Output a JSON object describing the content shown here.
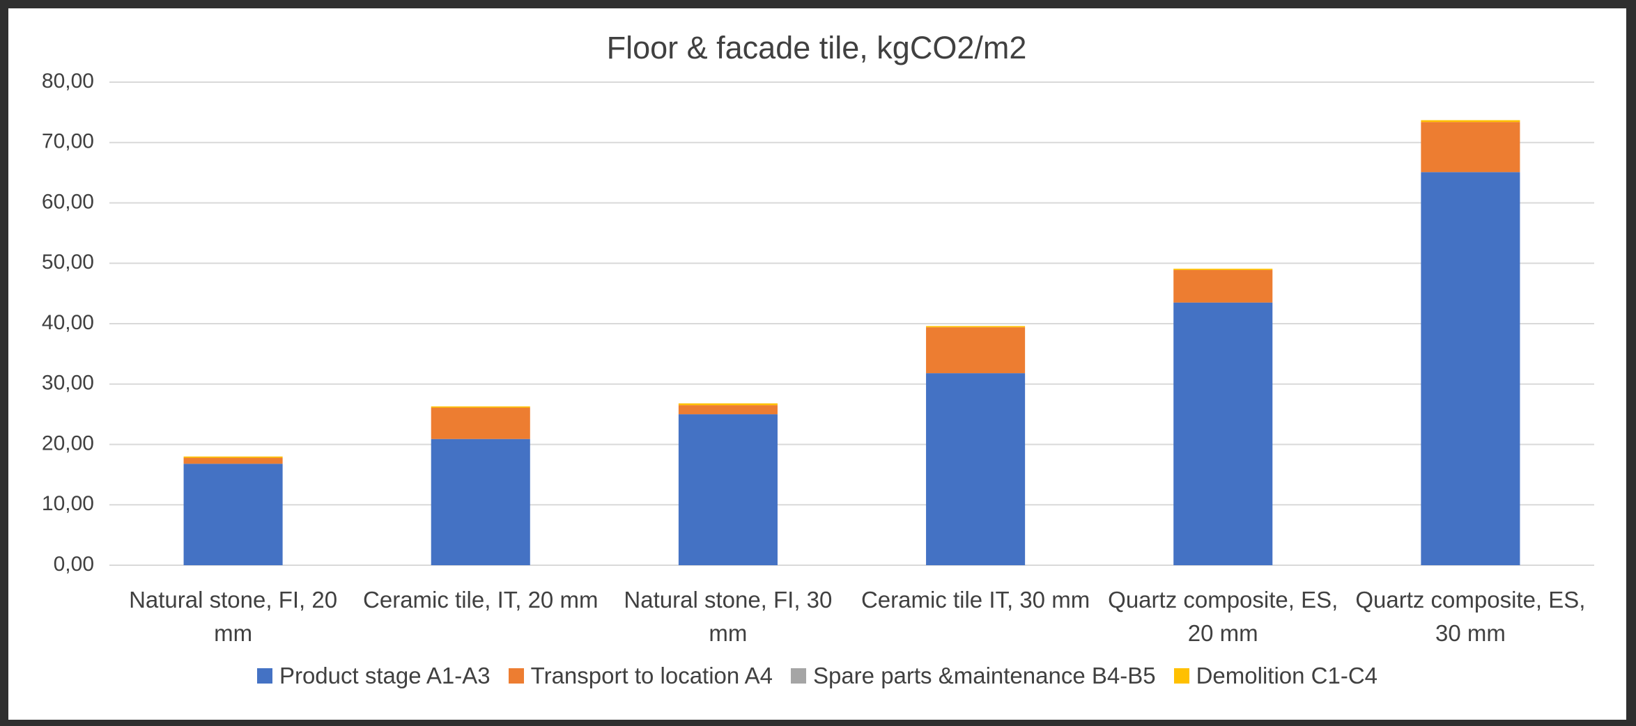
{
  "chart_data": {
    "type": "stacked-bar",
    "title": "Floor & facade tile, kgCO2/m2",
    "categories": [
      "Natural stone, FI, 20 mm",
      "Ceramic tile, IT, 20 mm",
      "Natural stone, FI, 30 mm",
      "Ceramic tile IT, 30 mm",
      "Quartz composite, ES, 20 mm",
      "Quartz composite, ES, 30 mm"
    ],
    "series": [
      {
        "name": "Product stage A1-A3",
        "color": "#4472c4",
        "values": [
          16.8,
          20.9,
          25.0,
          31.8,
          43.5,
          65.1
        ]
      },
      {
        "name": "Transport to location A4",
        "color": "#ed7d31",
        "values": [
          1.0,
          5.2,
          1.5,
          7.6,
          5.4,
          8.3
        ]
      },
      {
        "name": "Spare parts &maintenance B4-B5",
        "color": "#a5a5a5",
        "values": [
          0,
          0,
          0,
          0,
          0,
          0
        ]
      },
      {
        "name": "Demolition C1-C4",
        "color": "#ffc000",
        "values": [
          0.2,
          0.2,
          0.3,
          0.2,
          0.2,
          0.3
        ]
      }
    ],
    "ylim": [
      0,
      80
    ],
    "yticks": [
      {
        "value": 0,
        "label": "0,00"
      },
      {
        "value": 10,
        "label": "10,00"
      },
      {
        "value": 20,
        "label": "20,00"
      },
      {
        "value": 30,
        "label": "30,00"
      },
      {
        "value": 40,
        "label": "40,00"
      },
      {
        "value": 50,
        "label": "50,00"
      },
      {
        "value": 60,
        "label": "60,00"
      },
      {
        "value": 70,
        "label": "70,00"
      },
      {
        "value": 80,
        "label": "80,00"
      }
    ],
    "grid": true,
    "legend": "bottom"
  }
}
